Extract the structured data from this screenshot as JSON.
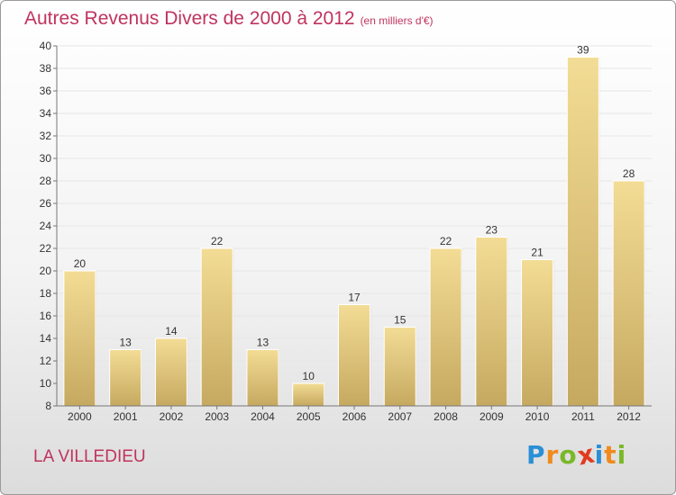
{
  "title": "Autres Revenus Divers de 2000 à 2012",
  "unit_note": "(en milliers d'€)",
  "place": "LA VILLEDIEU",
  "logo": {
    "text": "Proxiti",
    "letters": [
      {
        "ch": "P",
        "color": "#2a8fd6"
      },
      {
        "ch": "r",
        "color": "#f08a1c"
      },
      {
        "ch": "o",
        "color": "#7ab829"
      },
      {
        "ch": "x",
        "color": "#e23a1e"
      },
      {
        "ch": "i",
        "color": "#2a8fd6"
      },
      {
        "ch": "t",
        "color": "#f08a1c"
      },
      {
        "ch": "i",
        "color": "#7ab829"
      }
    ]
  },
  "colors": {
    "title": "#c0335f",
    "bar_light": "#f3dc95",
    "bar_dark": "#c6a960",
    "grid": "#e6e6e6"
  },
  "chart_data": {
    "type": "bar",
    "categories": [
      "2000",
      "2001",
      "2002",
      "2003",
      "2004",
      "2005",
      "2006",
      "2007",
      "2008",
      "2009",
      "2010",
      "2011",
      "2012"
    ],
    "values": [
      20,
      13,
      14,
      22,
      13,
      10,
      17,
      15,
      22,
      23,
      21,
      39,
      28
    ],
    "ylim": [
      8,
      40
    ],
    "yticks": [
      8,
      10,
      12,
      14,
      16,
      18,
      20,
      22,
      24,
      26,
      28,
      30,
      32,
      34,
      36,
      38,
      40
    ],
    "grid": true,
    "data_labels": true
  }
}
